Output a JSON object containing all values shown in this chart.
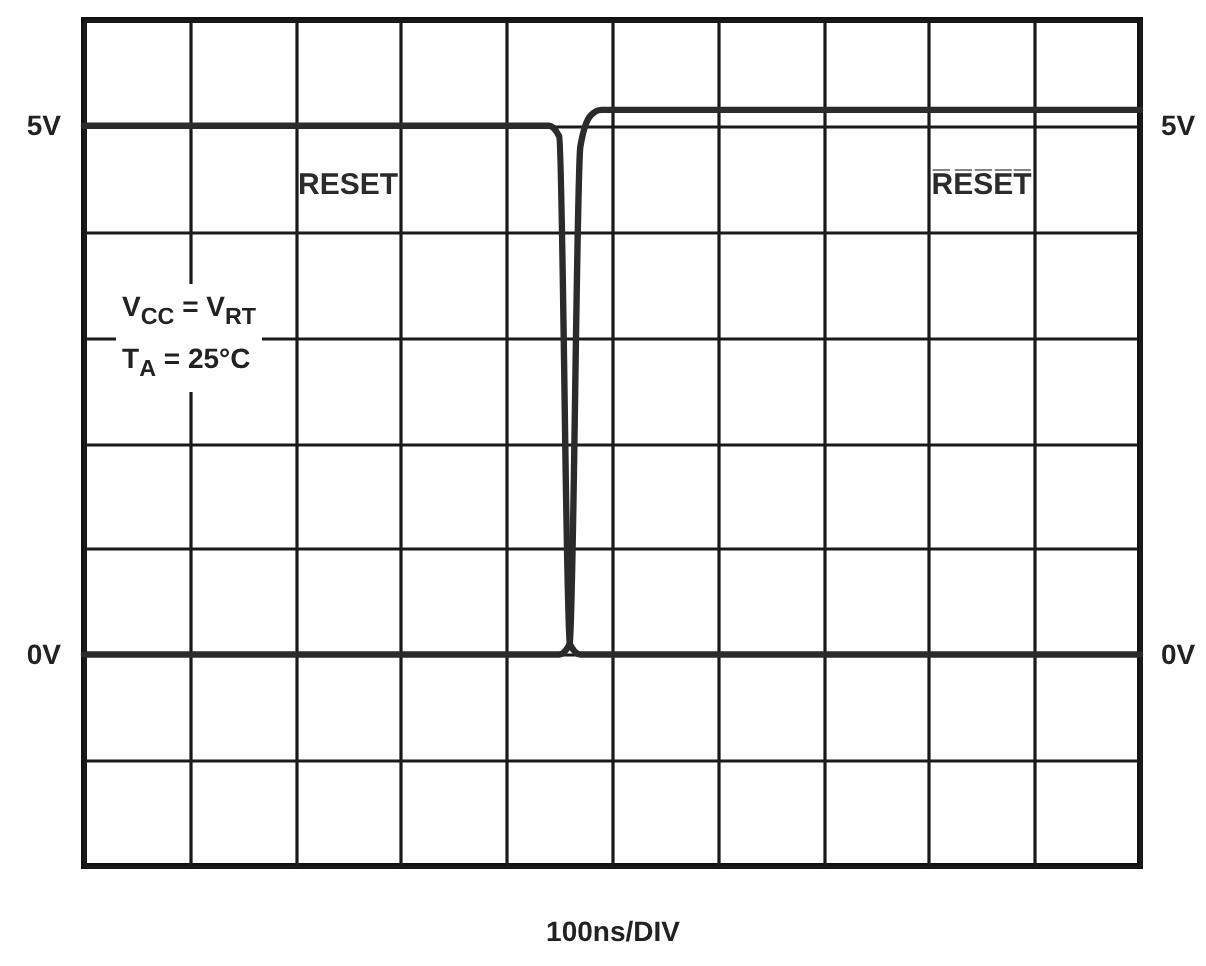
{
  "chart_data": {
    "type": "line",
    "xlabel": "100ns/DIV",
    "categories": [
      null,
      null,
      null,
      null,
      null,
      null,
      null,
      null,
      null,
      null,
      null,
      null,
      null,
      null,
      null,
      null,
      null,
      null,
      null,
      null,
      null,
      null,
      null,
      null,
      null,
      null,
      null,
      null,
      null,
      null,
      null,
      null,
      null,
      null,
      null,
      null,
      null,
      null,
      null,
      null,
      null,
      null,
      null,
      null,
      null,
      null,
      null,
      null,
      null,
      null,
      null,
      null,
      null,
      null,
      null,
      null,
      null,
      null,
      null,
      null,
      null,
      null,
      null,
      null,
      null,
      null,
      null,
      null,
      null,
      null,
      null,
      null,
      null,
      null,
      null,
      null,
      null,
      null,
      null,
      null,
      null,
      null,
      null,
      null,
      null,
      null,
      null,
      null,
      null,
      null,
      null,
      null,
      null,
      null,
      null,
      null,
      null,
      null,
      null,
      null,
      null
    ],
    "series": [
      {
        "name": "RESET",
        "color": "#2b2b2b",
        "values": [
          5,
          5,
          5,
          5,
          5,
          5,
          5,
          5,
          5,
          5,
          5,
          5,
          5,
          5,
          5,
          5,
          5,
          5,
          5,
          5,
          5,
          5,
          5,
          5,
          5,
          5,
          5,
          5,
          5,
          5,
          5,
          5,
          5,
          5,
          5,
          5,
          5,
          5,
          5,
          5,
          5,
          5,
          5,
          5,
          5,
          4.9,
          0.1,
          0,
          0,
          0,
          0,
          0,
          0,
          0,
          0,
          0,
          0,
          0,
          0,
          0,
          0,
          0,
          0,
          0,
          0,
          0,
          0,
          0,
          0,
          0,
          0,
          0,
          0,
          0,
          0,
          0,
          0,
          0,
          0,
          0,
          0,
          0,
          0,
          0,
          0,
          0,
          0,
          0,
          0,
          0,
          0,
          0,
          0,
          0,
          0,
          0,
          0,
          0,
          0,
          0,
          0
        ]
      },
      {
        "name": "R̅E̅S̅E̅T̅",
        "color": "#2b2b2b",
        "values": [
          0,
          0,
          0,
          0,
          0,
          0,
          0,
          0,
          0,
          0,
          0,
          0,
          0,
          0,
          0,
          0,
          0,
          0,
          0,
          0,
          0,
          0,
          0,
          0,
          0,
          0,
          0,
          0,
          0,
          0,
          0,
          0,
          0,
          0,
          0,
          0,
          0,
          0,
          0,
          0,
          0,
          0,
          0,
          0,
          0,
          0,
          0.1,
          4.8,
          5.1,
          5.15,
          5.15,
          5.15,
          5.15,
          5.15,
          5.15,
          5.15,
          5.15,
          5.15,
          5.15,
          5.15,
          5.15,
          5.15,
          5.15,
          5.15,
          5.15,
          5.15,
          5.15,
          5.15,
          5.15,
          5.15,
          5.15,
          5.15,
          5.15,
          5.15,
          5.15,
          5.15,
          5.15,
          5.15,
          5.15,
          5.15,
          5.15,
          5.15,
          5.15,
          5.15,
          5.15,
          5.15,
          5.15,
          5.15,
          5.15,
          5.15,
          5.15,
          5.15,
          5.15,
          5.15,
          5.15,
          5.15,
          5.15,
          5.15,
          5.15,
          5.15,
          5.15
        ]
      }
    ],
    "ylim": [
      -2,
      6
    ],
    "yticks": [
      {
        "value": -2,
        "label": null
      },
      {
        "value": -1,
        "label": null
      },
      {
        "value": 0,
        "label": "0V"
      },
      {
        "value": 1,
        "label": null
      },
      {
        "value": 2,
        "label": null
      },
      {
        "value": 3,
        "label": null
      },
      {
        "value": 4,
        "label": null
      },
      {
        "value": 5,
        "label": "5V"
      },
      {
        "value": 6,
        "label": null
      }
    ],
    "y2lim": [
      -2,
      6
    ],
    "y2ticks": [
      {
        "value": -2,
        "label": null
      },
      {
        "value": -1,
        "label": null
      },
      {
        "value": 0,
        "label": "0V"
      },
      {
        "value": 1,
        "label": null
      },
      {
        "value": 2,
        "label": null
      },
      {
        "value": 3,
        "label": null
      },
      {
        "value": 4,
        "label": null
      },
      {
        "value": 5,
        "label": "5V"
      },
      {
        "value": 6,
        "label": null
      }
    ],
    "tick_labels": "y",
    "grid": true,
    "marker": "none",
    "line_style": "solid",
    "annotations": [
      "V$_{CC}$ = V$_{RT}$",
      "T$_{A}$ = 25°C"
    ]
  }
}
